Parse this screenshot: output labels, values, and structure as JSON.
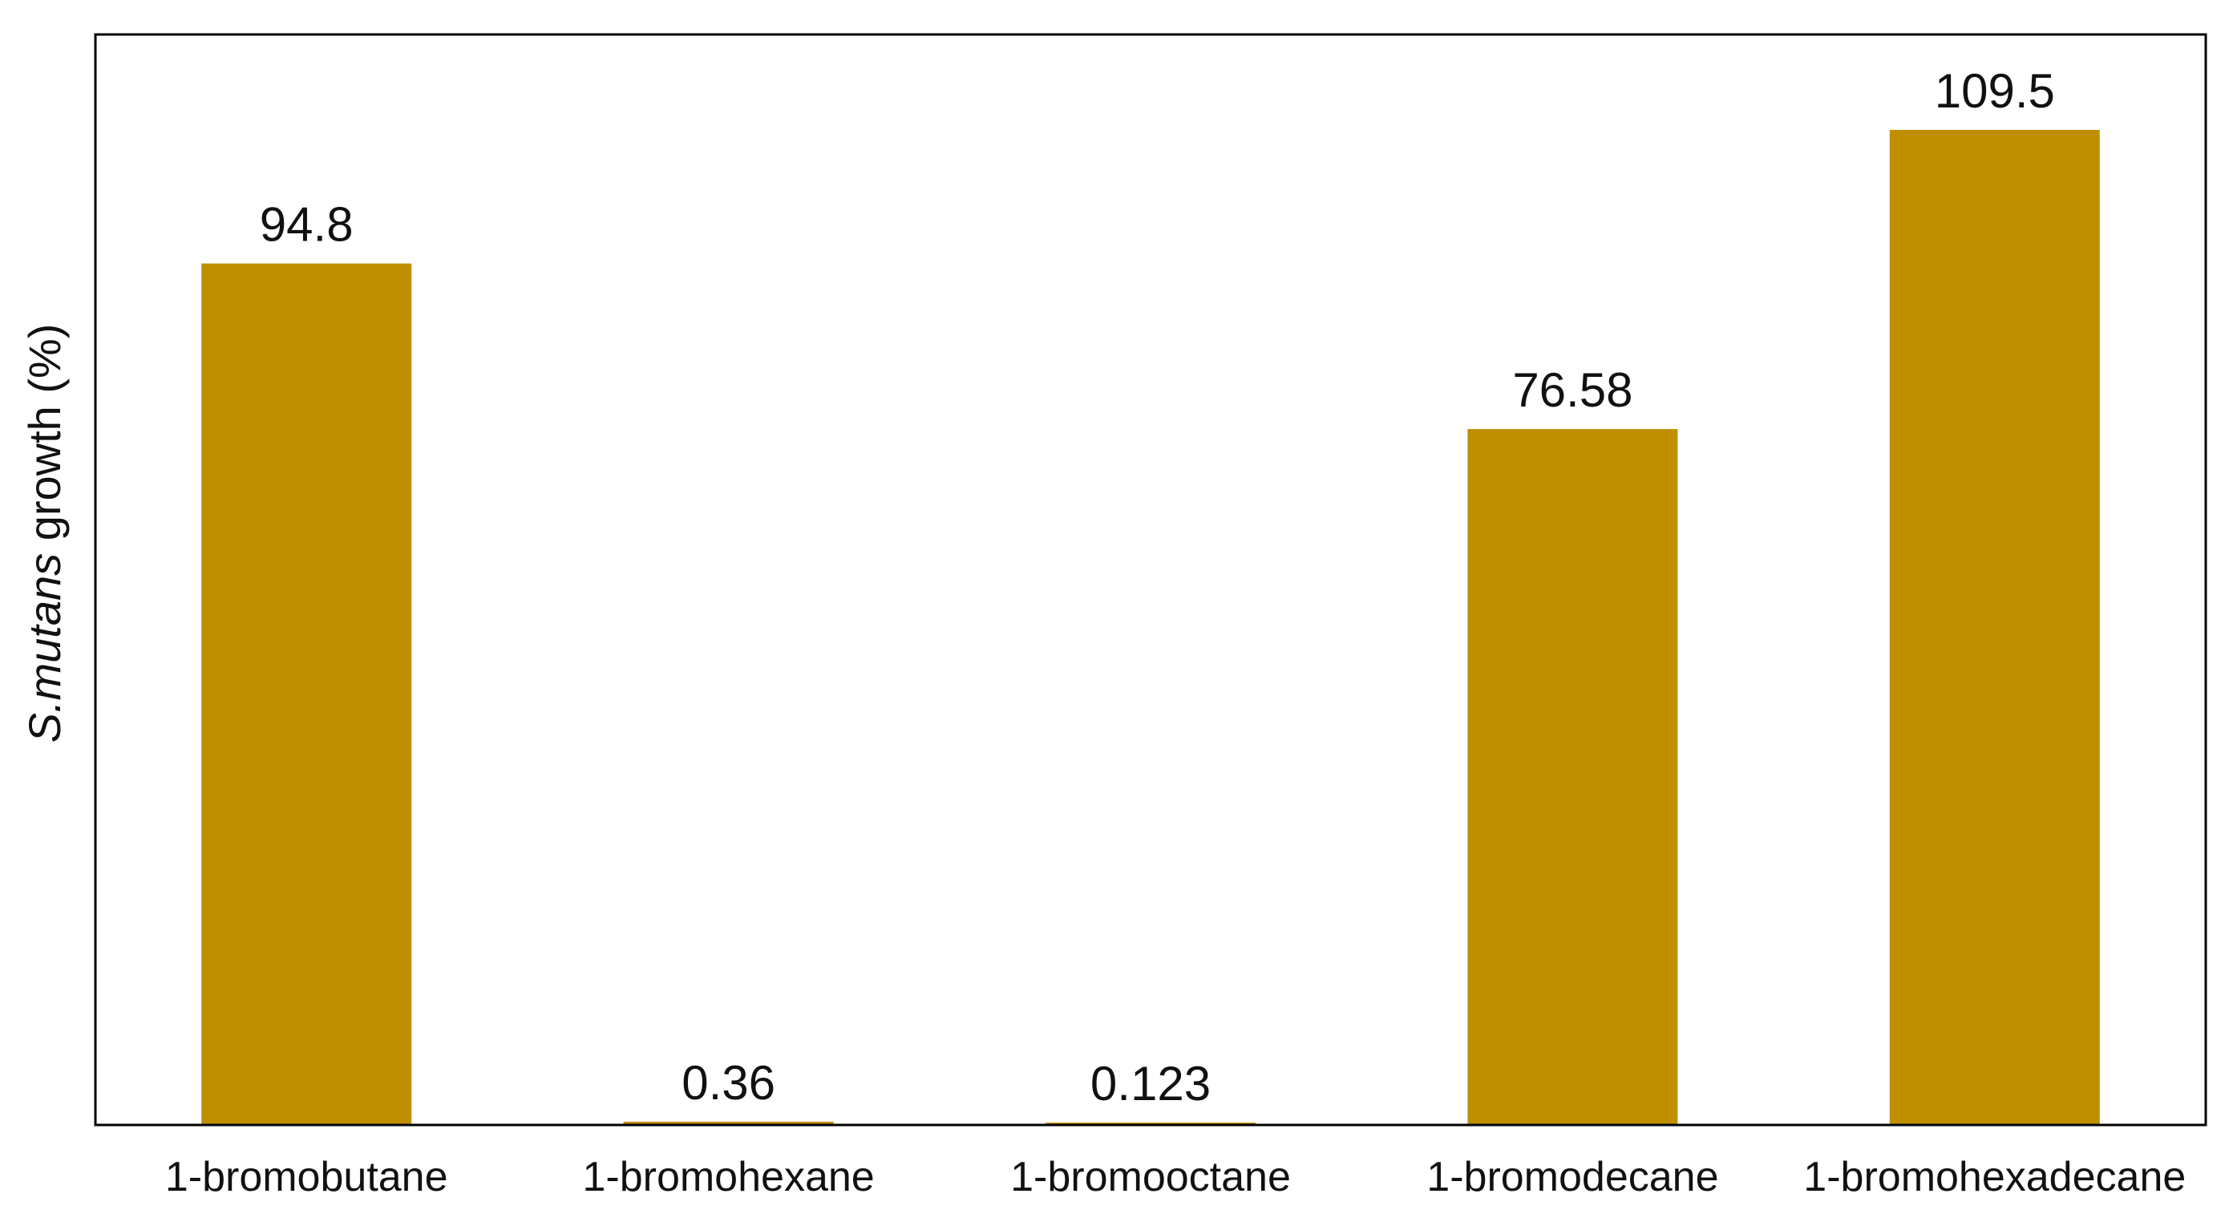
{
  "chart_data": {
    "type": "bar",
    "title": "",
    "xlabel": "",
    "ylabel": {
      "italic": "S.mutans",
      "rest": " growth (%)"
    },
    "categories": [
      "1-bromobutane",
      "1-bromohexane",
      "1-bromooctane",
      "1-bromodecane",
      "1-bromohexadecane"
    ],
    "values": [
      94.8,
      0.36,
      0.123,
      76.58,
      109.5
    ],
    "value_labels": [
      "94.8",
      "0.36",
      "0.123",
      "76.58",
      "109.5"
    ],
    "ylim": [
      0,
      120
    ],
    "grid": false,
    "legend": "none",
    "bar_color": "#BF8F00",
    "axis_color": "#000000"
  }
}
